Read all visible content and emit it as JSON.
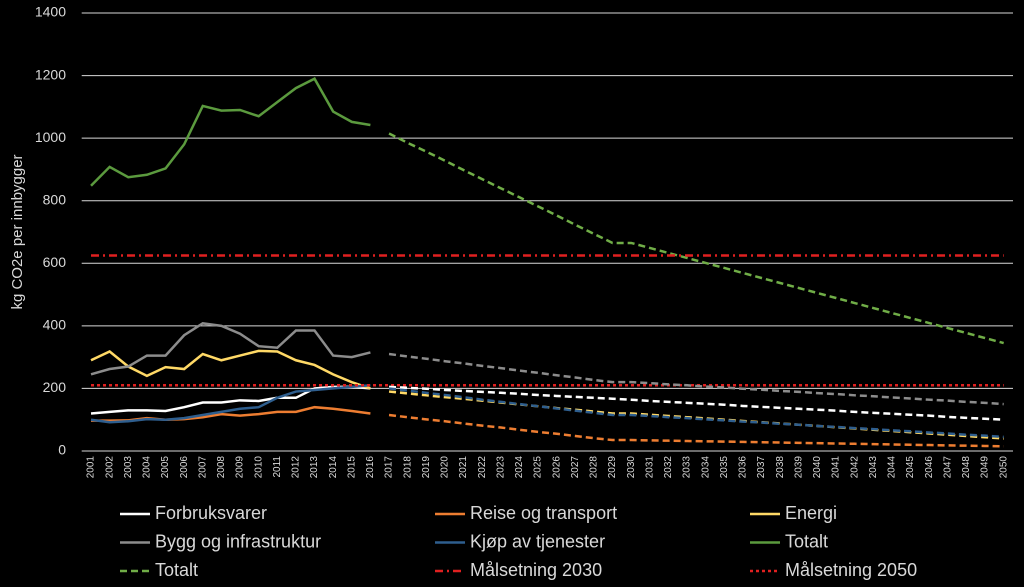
{
  "chart_data": {
    "type": "line",
    "y_label": "kg CO2e per innbygger",
    "categories": [
      "2001",
      "2002",
      "2003",
      "2004",
      "2005",
      "2006",
      "2007",
      "2008",
      "2009",
      "2010",
      "2011",
      "2012",
      "2013",
      "2014",
      "2015",
      "2016",
      "2017",
      "2018",
      "2019",
      "2020",
      "2021",
      "2022",
      "2023",
      "2024",
      "2025",
      "2026",
      "2027",
      "2028",
      "2029",
      "2030",
      "2031",
      "2032",
      "2033",
      "2034",
      "2035",
      "2036",
      "2037",
      "2038",
      "2039",
      "2040",
      "2041",
      "2042",
      "2043",
      "2044",
      "2045",
      "2046",
      "2047",
      "2048",
      "2049",
      "2050"
    ],
    "ylim": [
      0,
      1400
    ],
    "yticks": [
      0,
      200,
      400,
      600,
      800,
      1000,
      1200,
      1400
    ],
    "grid": true,
    "series": [
      {
        "name": "Forbruksvarer",
        "color": "#ffffff",
        "dash": "solid",
        "values": [
          120,
          125,
          130,
          130,
          128,
          140,
          155,
          155,
          162,
          160,
          170,
          170,
          200,
          205,
          205,
          200,
          null,
          null,
          null,
          null,
          null,
          null,
          null,
          null,
          null,
          null,
          null,
          null,
          null,
          null,
          null,
          null,
          null,
          null,
          null,
          null,
          null,
          null,
          null,
          null,
          null,
          null,
          null,
          null,
          null,
          null,
          null,
          null,
          null,
          null
        ]
      },
      {
        "name": "Reise og transport",
        "color": "#ed7d31",
        "dash": "solid",
        "values": [
          97,
          97,
          98,
          105,
          100,
          102,
          108,
          118,
          113,
          118,
          125,
          125,
          140,
          135,
          128,
          120,
          null,
          null,
          null,
          null,
          null,
          null,
          null,
          null,
          null,
          null,
          null,
          null,
          null,
          null,
          null,
          null,
          null,
          null,
          null,
          null,
          null,
          null,
          null,
          null,
          null,
          null,
          null,
          null,
          null,
          null,
          null,
          null,
          null,
          null
        ]
      },
      {
        "name": "Energi",
        "color": "#ffd966",
        "dash": "solid",
        "values": [
          290,
          318,
          270,
          240,
          268,
          262,
          310,
          290,
          305,
          320,
          318,
          290,
          275,
          245,
          220,
          200,
          null,
          null,
          null,
          null,
          null,
          null,
          null,
          null,
          null,
          null,
          null,
          null,
          null,
          null,
          null,
          null,
          null,
          null,
          null,
          null,
          null,
          null,
          null,
          null,
          null,
          null,
          null,
          null,
          null,
          null,
          null,
          null,
          null,
          null
        ]
      },
      {
        "name": "Bygg og infrastruktur",
        "color": "#8c8c8c",
        "dash": "solid",
        "values": [
          245,
          262,
          270,
          305,
          305,
          370,
          408,
          400,
          375,
          335,
          330,
          385,
          385,
          305,
          300,
          315,
          null,
          null,
          null,
          null,
          null,
          null,
          null,
          null,
          null,
          null,
          null,
          null,
          null,
          null,
          null,
          null,
          null,
          null,
          null,
          null,
          null,
          null,
          null,
          null,
          null,
          null,
          null,
          null,
          null,
          null,
          null,
          null,
          null,
          null
        ]
      },
      {
        "name": "Kjøp av tjenester",
        "color": "#2e5e8e",
        "dash": "solid",
        "values": [
          100,
          92,
          95,
          102,
          100,
          105,
          115,
          125,
          135,
          140,
          170,
          190,
          195,
          200,
          205,
          210,
          null,
          null,
          null,
          null,
          null,
          null,
          null,
          null,
          null,
          null,
          null,
          null,
          null,
          null,
          null,
          null,
          null,
          null,
          null,
          null,
          null,
          null,
          null,
          null,
          null,
          null,
          null,
          null,
          null,
          null,
          null,
          null,
          null,
          null
        ]
      },
      {
        "name": "Totalt",
        "color": "#5b9a3e",
        "dash": "solid",
        "values": [
          848,
          908,
          875,
          883,
          903,
          980,
          1103,
          1088,
          1090,
          1070,
          1115,
          1160,
          1190,
          1085,
          1052,
          1042,
          null,
          null,
          null,
          null,
          null,
          null,
          null,
          null,
          null,
          null,
          null,
          null,
          null,
          null,
          null,
          null,
          null,
          null,
          null,
          null,
          null,
          null,
          null,
          null,
          null,
          null,
          null,
          null,
          null,
          null,
          null,
          null,
          null,
          null
        ]
      },
      {
        "name": "Totalt",
        "color": "#70ad47",
        "dash": "dashed",
        "values": [
          null,
          null,
          null,
          null,
          null,
          null,
          null,
          null,
          null,
          null,
          null,
          null,
          null,
          null,
          null,
          null,
          1015,
          985,
          957,
          928,
          898,
          869,
          840,
          811,
          782,
          753,
          723,
          694,
          665,
          665,
          649,
          633,
          617,
          601,
          585,
          569,
          553,
          537,
          521,
          505,
          489,
          473,
          457,
          441,
          425,
          409,
          393,
          377,
          361,
          345
        ]
      },
      {
        "name": "Målsetning 2030",
        "color": "#e02020",
        "dash": "dashdot",
        "values": [
          625,
          625,
          625,
          625,
          625,
          625,
          625,
          625,
          625,
          625,
          625,
          625,
          625,
          625,
          625,
          625,
          625,
          625,
          625,
          625,
          625,
          625,
          625,
          625,
          625,
          625,
          625,
          625,
          625,
          625,
          625,
          625,
          625,
          625,
          625,
          625,
          625,
          625,
          625,
          625,
          625,
          625,
          625,
          625,
          625,
          625,
          625,
          625,
          625,
          625
        ]
      },
      {
        "name": "Målsetning 2050",
        "color": "#e02020",
        "dash": "dotted",
        "values": [
          210,
          210,
          210,
          210,
          210,
          210,
          210,
          210,
          210,
          210,
          210,
          210,
          210,
          210,
          210,
          210,
          210,
          210,
          210,
          210,
          210,
          210,
          210,
          210,
          210,
          210,
          210,
          210,
          210,
          210,
          210,
          210,
          210,
          210,
          210,
          210,
          210,
          210,
          210,
          210,
          210,
          210,
          210,
          210,
          210,
          210,
          210,
          210,
          210,
          210
        ]
      },
      {
        "color": "#ffffff",
        "dash": "dashed",
        "values": [
          null,
          null,
          null,
          null,
          null,
          null,
          null,
          null,
          null,
          null,
          null,
          null,
          null,
          null,
          null,
          null,
          205,
          202,
          199,
          195,
          192,
          189,
          186,
          183,
          179,
          176,
          173,
          170,
          167,
          164,
          160,
          157,
          154,
          151,
          148,
          144,
          141,
          138,
          135,
          132,
          129,
          125,
          122,
          119,
          116,
          113,
          109,
          106,
          103,
          100
        ]
      },
      {
        "color": "#ed7d31",
        "dash": "dashed",
        "values": [
          null,
          null,
          null,
          null,
          null,
          null,
          null,
          null,
          null,
          null,
          null,
          null,
          null,
          null,
          null,
          null,
          115,
          108,
          101,
          95,
          88,
          81,
          75,
          68,
          61,
          55,
          48,
          41,
          35,
          35,
          34,
          33,
          32,
          31,
          30,
          29,
          28,
          27,
          26,
          25,
          24,
          23,
          22,
          21,
          20,
          19,
          18,
          17,
          16,
          15
        ]
      },
      {
        "color": "#8c8c8c",
        "dash": "dashed",
        "values": [
          null,
          null,
          null,
          null,
          null,
          null,
          null,
          null,
          null,
          null,
          null,
          null,
          null,
          null,
          null,
          null,
          310,
          302,
          295,
          287,
          280,
          272,
          265,
          257,
          250,
          242,
          235,
          227,
          220,
          220,
          217,
          213,
          210,
          206,
          203,
          199,
          196,
          192,
          189,
          185,
          182,
          178,
          175,
          171,
          168,
          164,
          161,
          157,
          154,
          150
        ]
      },
      {
        "color": "#ffd966",
        "dash": "dashed",
        "values": [
          null,
          null,
          null,
          null,
          null,
          null,
          null,
          null,
          null,
          null,
          null,
          null,
          null,
          null,
          null,
          null,
          190,
          184,
          178,
          172,
          167,
          161,
          155,
          149,
          143,
          137,
          132,
          126,
          120,
          120,
          116,
          112,
          108,
          104,
          100,
          96,
          92,
          88,
          84,
          80,
          76,
          72,
          68,
          64,
          60,
          56,
          52,
          48,
          44,
          40
        ]
      },
      {
        "color": "#2e5e8e",
        "dash": "dashed",
        "values": [
          null,
          null,
          null,
          null,
          null,
          null,
          null,
          null,
          null,
          null,
          null,
          null,
          null,
          null,
          null,
          null,
          200,
          193,
          186,
          179,
          172,
          164,
          157,
          150,
          143,
          136,
          129,
          122,
          115,
          115,
          112,
          108,
          105,
          101,
          98,
          94,
          91,
          87,
          84,
          80,
          77,
          73,
          70,
          66,
          63,
          59,
          56,
          52,
          49,
          45
        ]
      }
    ]
  }
}
